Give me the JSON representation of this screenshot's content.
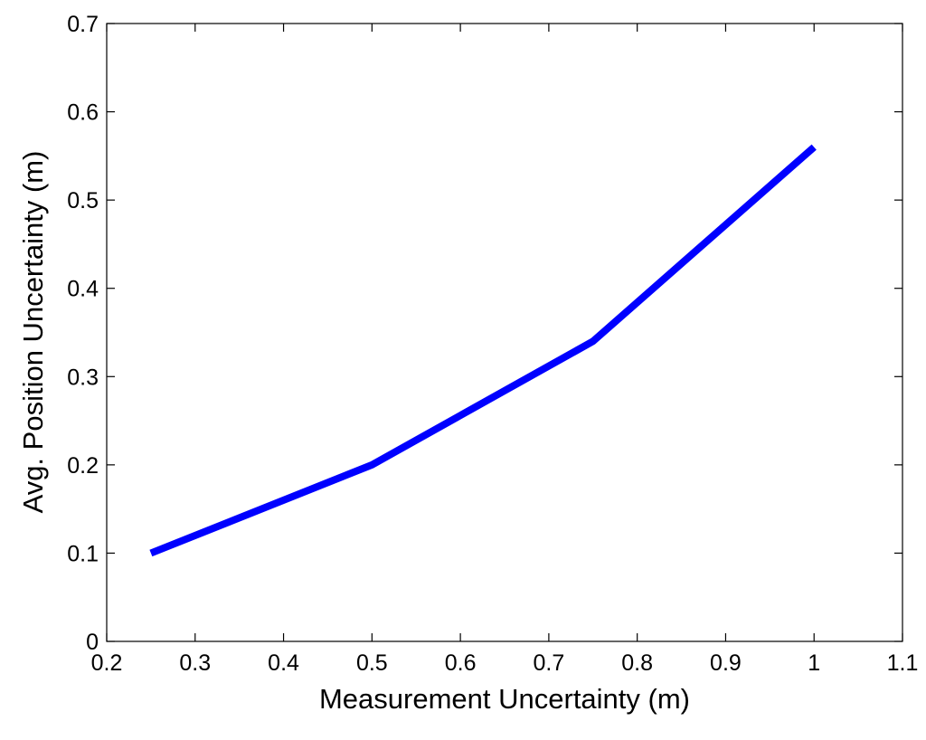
{
  "chart_data": {
    "type": "line",
    "title": "",
    "xlabel": "Measurement Uncertainty (m)",
    "ylabel": "Avg. Position Uncertainty (m)",
    "xlim": [
      0.2,
      1.1
    ],
    "ylim": [
      0,
      0.7
    ],
    "xticks": [
      0.2,
      0.3,
      0.4,
      0.5,
      0.6,
      0.7,
      0.8,
      0.9,
      1,
      1.1
    ],
    "yticks": [
      0,
      0.1,
      0.2,
      0.3,
      0.4,
      0.5,
      0.6,
      0.7
    ],
    "grid": false,
    "legend": "none",
    "series": [
      {
        "x": [
          0.25,
          0.5,
          0.75,
          1.0
        ],
        "y": [
          0.1,
          0.2,
          0.34,
          0.56
        ],
        "color": "#0000ff"
      }
    ]
  }
}
